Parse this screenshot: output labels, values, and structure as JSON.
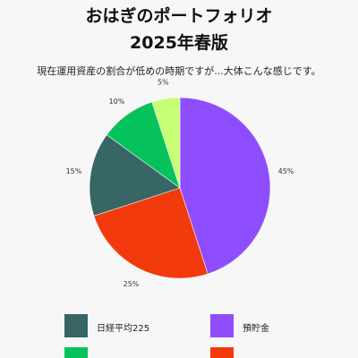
{
  "title_line1": "おはぎのポートフォリオ",
  "title_line2": "2025年春版",
  "subtitle": "現在運用資産の割合が低めの時期ですが...大体こんな感じです。",
  "chart_data": {
    "type": "pie",
    "title": "おはぎのポートフォリオ 2025年春版",
    "subtitle": "現在運用資産の割合が低めの時期ですが...大体こんな感じです。",
    "start_angle_deg": 0,
    "direction": "clockwise",
    "slices": [
      {
        "label": "預貯金",
        "value": 45,
        "display": "45%",
        "color": "#8e4dff"
      },
      {
        "label": "",
        "value": 25,
        "display": "25%",
        "color": "#f23a0c"
      },
      {
        "label": "日経平均225",
        "value": 15,
        "display": "15%",
        "color": "#386566"
      },
      {
        "label": "",
        "value": 10,
        "display": "10%",
        "color": "#06c25a"
      },
      {
        "label": "",
        "value": 5,
        "display": "5%",
        "color": "#c6ff74"
      }
    ],
    "legend": [
      {
        "label": "日経平均225",
        "color": "#386566"
      },
      {
        "label": "預貯金",
        "color": "#8e4dff"
      },
      {
        "label": "",
        "color": "#06c25a"
      },
      {
        "label": "",
        "color": "#f23a0c"
      }
    ],
    "legend_position": "bottom"
  }
}
